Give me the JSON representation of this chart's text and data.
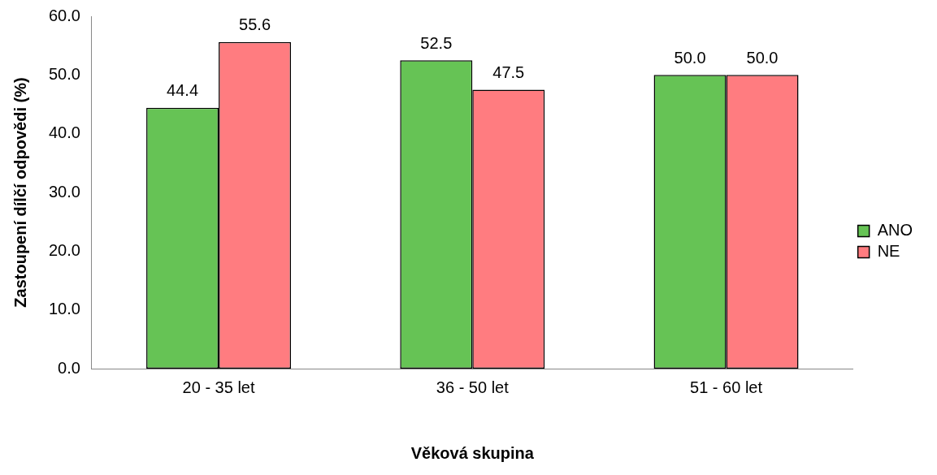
{
  "chart_data": {
    "type": "bar",
    "xlabel": "Věková skupina",
    "ylabel": "Zastoupení dílčí odpovědi (%)",
    "categories": [
      "20 - 35 let",
      "36 - 50 let",
      "51 - 60 let"
    ],
    "series": [
      {
        "name": "ANO",
        "color": "#66c355",
        "values": [
          44.4,
          52.5,
          50
        ],
        "value_labels": [
          "44.4",
          "52.5",
          "50.0"
        ]
      },
      {
        "name": "NE",
        "color": "#ff7c80",
        "values": [
          55.6,
          47.5,
          50
        ],
        "value_labels": [
          "55.6",
          "47.5",
          "50.0"
        ]
      }
    ],
    "ylim": [
      0,
      60
    ],
    "yticks": [
      {
        "value": 0,
        "label": "0.0"
      },
      {
        "value": 10,
        "label": "10.0"
      },
      {
        "value": 20,
        "label": "20.0"
      },
      {
        "value": 30,
        "label": "30.0"
      },
      {
        "value": 40,
        "label": "40.0"
      },
      {
        "value": 50,
        "label": "50.0"
      },
      {
        "value": 60,
        "label": "60.0"
      }
    ],
    "grid": false,
    "legend": "right"
  }
}
